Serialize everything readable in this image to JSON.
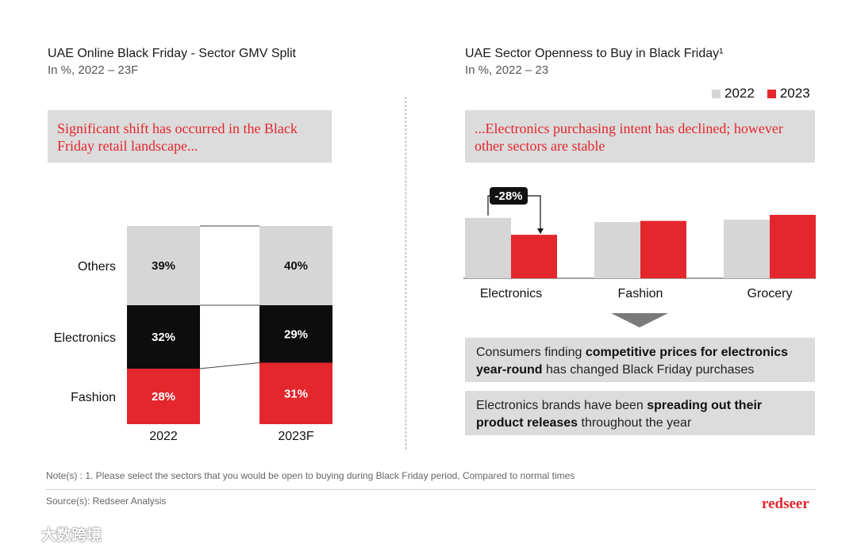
{
  "left": {
    "title": "UAE Online Black Friday - Sector GMV Split",
    "subtitle": "In %, 2022 – 23F",
    "callout": "Significant shift has occurred in the Black Friday retail landscape..."
  },
  "right": {
    "title": "UAE Sector Openness to Buy in Black Friday¹",
    "subtitle": "In %, 2022 – 23",
    "callout": "...Electronics purchasing intent has declined; however other sectors are stable",
    "change_label": "-28%",
    "insights": [
      {
        "pre": "Consumers finding ",
        "bold": "competitive prices for electronics year-round",
        "post": " has changed Black Friday purchases"
      },
      {
        "pre": "Electronics brands have been ",
        "bold": "spreading out their product releases",
        "post": " throughout the year"
      }
    ]
  },
  "footer": {
    "note": "Note(s) : 1. Please select the sectors that you would be open to buying during Black Friday period, Compared to normal times",
    "source": "Source(s): Redseer Analysis",
    "logo": "redseer",
    "watermark": "大数跨境"
  },
  "colors": {
    "others": "#d6d6d6",
    "electronics": "#0d0d0d",
    "fashion": "#e4262d",
    "bar2022": "#d6d6d6",
    "bar2023": "#e4262d"
  },
  "chart_data": [
    {
      "type": "bar",
      "stacked": true,
      "categories": [
        "2022",
        "2023F"
      ],
      "series": [
        {
          "name": "Fashion",
          "values": [
            28,
            31
          ],
          "labels": [
            "28%",
            "31%"
          ]
        },
        {
          "name": "Electronics",
          "values": [
            32,
            29
          ],
          "labels": [
            "32%",
            "29%"
          ]
        },
        {
          "name": "Others",
          "values": [
            39,
            40
          ],
          "labels": [
            "39%",
            "40%"
          ]
        }
      ],
      "ylim": [
        0,
        100
      ]
    },
    {
      "type": "bar",
      "categories": [
        "Electronics",
        "Fashion",
        "Grocery"
      ],
      "series": [
        {
          "name": "2022",
          "values": [
            100,
            93,
            97
          ]
        },
        {
          "name": "2023",
          "values": [
            72,
            95,
            105
          ]
        }
      ],
      "ylim": [
        0,
        105
      ],
      "legend_position": "top-right",
      "annotation": "-28%"
    }
  ]
}
